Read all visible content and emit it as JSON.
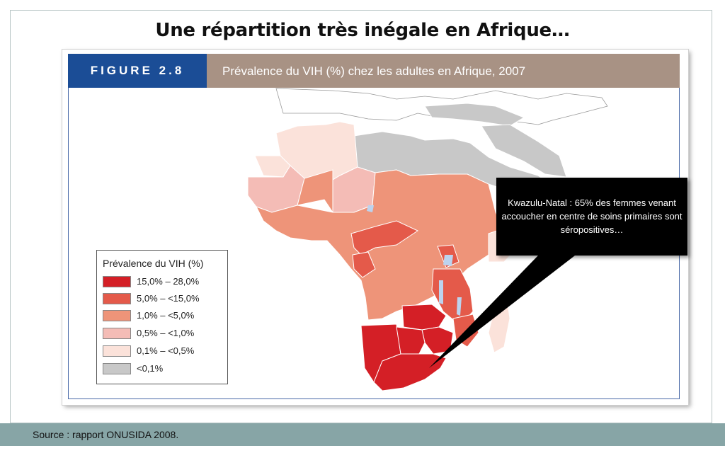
{
  "slide": {
    "title": "Une répartition très inégale en Afrique…",
    "source": "Source : rapport ONUSIDA 2008."
  },
  "figure": {
    "label": "FIGURE 2.8",
    "caption": "Prévalence du VIH (%) chez les adultes en Afrique, 2007"
  },
  "legend": {
    "title": "Prévalence du VIH (%)",
    "items": [
      {
        "label": "15,0% – 28,0%",
        "color": "#d41f26"
      },
      {
        "label": "5,0% – <15,0%",
        "color": "#e45a4a"
      },
      {
        "label": "1,0% – <5,0%",
        "color": "#ee9479"
      },
      {
        "label": "0,5% – <1,0%",
        "color": "#f4bcb6"
      },
      {
        "label": "0,1% – <0,5%",
        "color": "#fbe2da"
      },
      {
        "label": "<0,1%",
        "color": "#c8c8c8"
      }
    ]
  },
  "callout": {
    "text": "Kwazulu-Natal : 65% des femmes venant accoucher en centre de soins primaires sont séropositives…"
  },
  "colors": {
    "header_bar": "#a89284",
    "label_bar": "#1b4d96",
    "footer_bar": "#87a5a6",
    "outside_land": "#ffffff",
    "water": "#bcd3ee"
  }
}
